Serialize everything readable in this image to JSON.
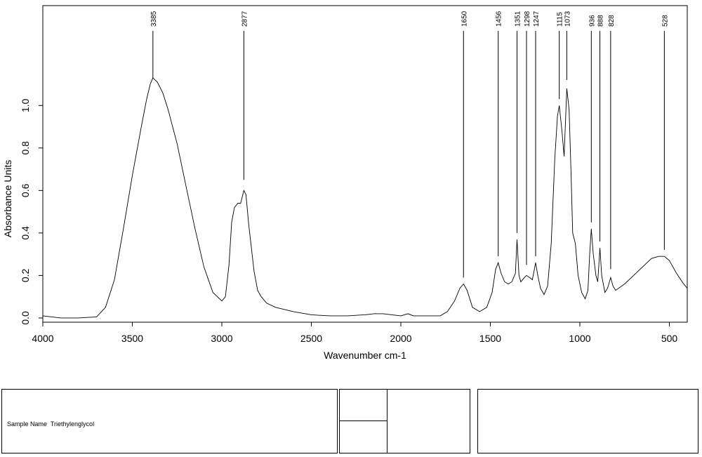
{
  "chart_data": {
    "type": "line",
    "xlabel": "Wavenumber cm-1",
    "ylabel": "Absorbance Units",
    "xlim": [
      4000,
      400
    ],
    "ylim": [
      -0.02,
      1.47
    ],
    "x_ticks": [
      4000,
      3500,
      3000,
      2500,
      2000,
      1500,
      1000,
      500
    ],
    "x_tick_labels": [
      "4000",
      "3500",
      "3000",
      "2500",
      "2000",
      "1500",
      "1000",
      "500"
    ],
    "y_ticks": [
      0.0,
      0.2,
      0.4,
      0.6,
      0.8,
      1.0
    ],
    "y_tick_labels": [
      "0.0",
      "0.2",
      "0.4",
      "0.6",
      "0.8",
      "1.0"
    ],
    "grid": false,
    "series": [
      {
        "points": [
          [
            4000,
            0.01
          ],
          [
            3900,
            0.0
          ],
          [
            3800,
            0.0
          ],
          [
            3700,
            0.005
          ],
          [
            3650,
            0.05
          ],
          [
            3600,
            0.18
          ],
          [
            3550,
            0.42
          ],
          [
            3500,
            0.67
          ],
          [
            3450,
            0.9
          ],
          [
            3420,
            1.03
          ],
          [
            3400,
            1.1
          ],
          [
            3385,
            1.13
          ],
          [
            3360,
            1.11
          ],
          [
            3330,
            1.06
          ],
          [
            3300,
            0.98
          ],
          [
            3250,
            0.82
          ],
          [
            3200,
            0.62
          ],
          [
            3150,
            0.42
          ],
          [
            3100,
            0.24
          ],
          [
            3050,
            0.12
          ],
          [
            3000,
            0.08
          ],
          [
            2980,
            0.1
          ],
          [
            2960,
            0.25
          ],
          [
            2945,
            0.45
          ],
          [
            2930,
            0.52
          ],
          [
            2910,
            0.54
          ],
          [
            2895,
            0.54
          ],
          [
            2877,
            0.6
          ],
          [
            2865,
            0.58
          ],
          [
            2850,
            0.44
          ],
          [
            2820,
            0.22
          ],
          [
            2800,
            0.13
          ],
          [
            2780,
            0.1
          ],
          [
            2750,
            0.07
          ],
          [
            2700,
            0.05
          ],
          [
            2600,
            0.03
          ],
          [
            2500,
            0.015
          ],
          [
            2400,
            0.01
          ],
          [
            2300,
            0.01
          ],
          [
            2200,
            0.015
          ],
          [
            2150,
            0.02
          ],
          [
            2100,
            0.02
          ],
          [
            2050,
            0.015
          ],
          [
            2000,
            0.01
          ],
          [
            1960,
            0.02
          ],
          [
            1930,
            0.01
          ],
          [
            1850,
            0.01
          ],
          [
            1780,
            0.01
          ],
          [
            1740,
            0.03
          ],
          [
            1700,
            0.08
          ],
          [
            1670,
            0.14
          ],
          [
            1650,
            0.16
          ],
          [
            1630,
            0.13
          ],
          [
            1600,
            0.05
          ],
          [
            1560,
            0.03
          ],
          [
            1520,
            0.05
          ],
          [
            1490,
            0.12
          ],
          [
            1470,
            0.23
          ],
          [
            1456,
            0.26
          ],
          [
            1440,
            0.21
          ],
          [
            1420,
            0.17
          ],
          [
            1400,
            0.16
          ],
          [
            1380,
            0.17
          ],
          [
            1360,
            0.21
          ],
          [
            1351,
            0.37
          ],
          [
            1340,
            0.2
          ],
          [
            1330,
            0.17
          ],
          [
            1310,
            0.19
          ],
          [
            1298,
            0.2
          ],
          [
            1280,
            0.19
          ],
          [
            1265,
            0.18
          ],
          [
            1247,
            0.26
          ],
          [
            1235,
            0.2
          ],
          [
            1220,
            0.14
          ],
          [
            1200,
            0.11
          ],
          [
            1180,
            0.15
          ],
          [
            1160,
            0.35
          ],
          [
            1140,
            0.75
          ],
          [
            1125,
            0.95
          ],
          [
            1115,
            1.0
          ],
          [
            1100,
            0.88
          ],
          [
            1088,
            0.76
          ],
          [
            1073,
            1.08
          ],
          [
            1060,
            0.98
          ],
          [
            1050,
            0.7
          ],
          [
            1040,
            0.4
          ],
          [
            1025,
            0.35
          ],
          [
            1010,
            0.2
          ],
          [
            990,
            0.12
          ],
          [
            970,
            0.09
          ],
          [
            955,
            0.13
          ],
          [
            945,
            0.3
          ],
          [
            936,
            0.42
          ],
          [
            925,
            0.3
          ],
          [
            910,
            0.2
          ],
          [
            900,
            0.17
          ],
          [
            888,
            0.33
          ],
          [
            878,
            0.2
          ],
          [
            860,
            0.12
          ],
          [
            845,
            0.14
          ],
          [
            828,
            0.19
          ],
          [
            815,
            0.15
          ],
          [
            800,
            0.13
          ],
          [
            750,
            0.16
          ],
          [
            700,
            0.2
          ],
          [
            650,
            0.24
          ],
          [
            600,
            0.28
          ],
          [
            560,
            0.29
          ],
          [
            528,
            0.29
          ],
          [
            500,
            0.27
          ],
          [
            460,
            0.21
          ],
          [
            420,
            0.16
          ],
          [
            400,
            0.14
          ]
        ]
      }
    ],
    "peak_labels": [
      {
        "x": 3385,
        "label": "3385",
        "y_tip": 1.13
      },
      {
        "x": 2877,
        "label": "2877",
        "y_tip": 0.65
      },
      {
        "x": 1650,
        "label": "1650",
        "y_tip": 0.19
      },
      {
        "x": 1456,
        "label": "1456",
        "y_tip": 0.29
      },
      {
        "x": 1351,
        "label": "1351",
        "y_tip": 0.4
      },
      {
        "x": 1298,
        "label": "1298",
        "y_tip": 0.25
      },
      {
        "x": 1247,
        "label": "1247",
        "y_tip": 0.29
      },
      {
        "x": 1115,
        "label": "1115",
        "y_tip": 1.03
      },
      {
        "x": 1073,
        "label": "1073",
        "y_tip": 1.12
      },
      {
        "x": 936,
        "label": "936",
        "y_tip": 0.45
      },
      {
        "x": 888,
        "label": "888",
        "y_tip": 0.36
      },
      {
        "x": 828,
        "label": "828",
        "y_tip": 0.23
      },
      {
        "x": 528,
        "label": "528",
        "y_tip": 0.32
      }
    ]
  },
  "info_panel": {
    "sample_name_label": "Sample Name",
    "sample_name_value": "Triethylenglycol"
  }
}
